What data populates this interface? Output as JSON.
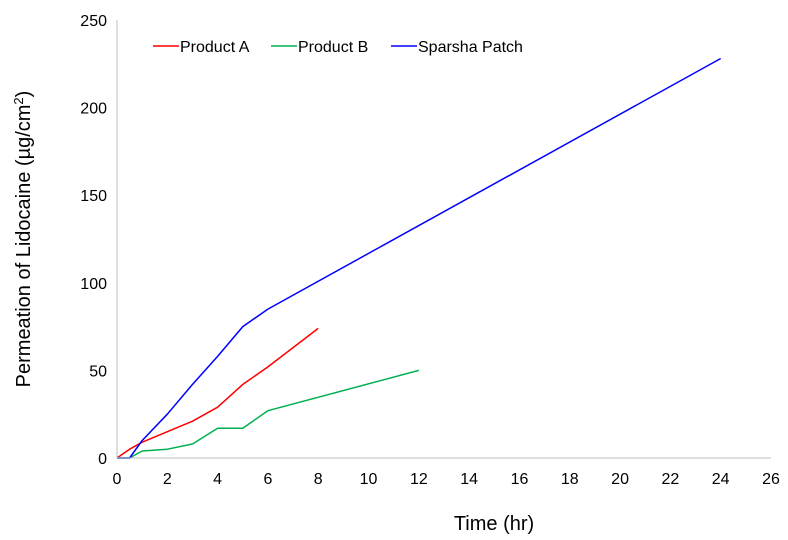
{
  "chart_data": {
    "type": "line",
    "xlabel": "Time (hr)",
    "ylabel_main": "Permeation of Lidocaine (µg/cm",
    "ylabel_sup": "2",
    "ylabel_close": ")",
    "xlim": [
      0,
      26
    ],
    "ylim": [
      0,
      250
    ],
    "xticks": [
      0,
      2,
      4,
      6,
      8,
      10,
      12,
      14,
      16,
      18,
      20,
      22,
      24,
      26
    ],
    "yticks": [
      0,
      50,
      100,
      150,
      200,
      250
    ],
    "grid": false,
    "legend_position": "top-left",
    "series": [
      {
        "name": "Product A",
        "color": "#ff0000",
        "x": [
          0,
          0.5,
          1,
          2,
          3,
          4,
          5,
          6,
          8
        ],
        "y": [
          0,
          5,
          9,
          15,
          21,
          29,
          42,
          52,
          74
        ]
      },
      {
        "name": "Product B",
        "color": "#00b050",
        "x": [
          0,
          0.5,
          1,
          2,
          3,
          4,
          5,
          6,
          12
        ],
        "y": [
          0,
          0,
          4,
          5,
          8,
          17,
          17,
          27,
          50
        ]
      },
      {
        "name": "Sparsha Patch",
        "color": "#0000ff",
        "x": [
          0,
          0.5,
          1,
          2,
          3,
          4,
          5,
          6,
          24
        ],
        "y": [
          0,
          0,
          10,
          25,
          42,
          58,
          75,
          85,
          228
        ]
      }
    ]
  }
}
